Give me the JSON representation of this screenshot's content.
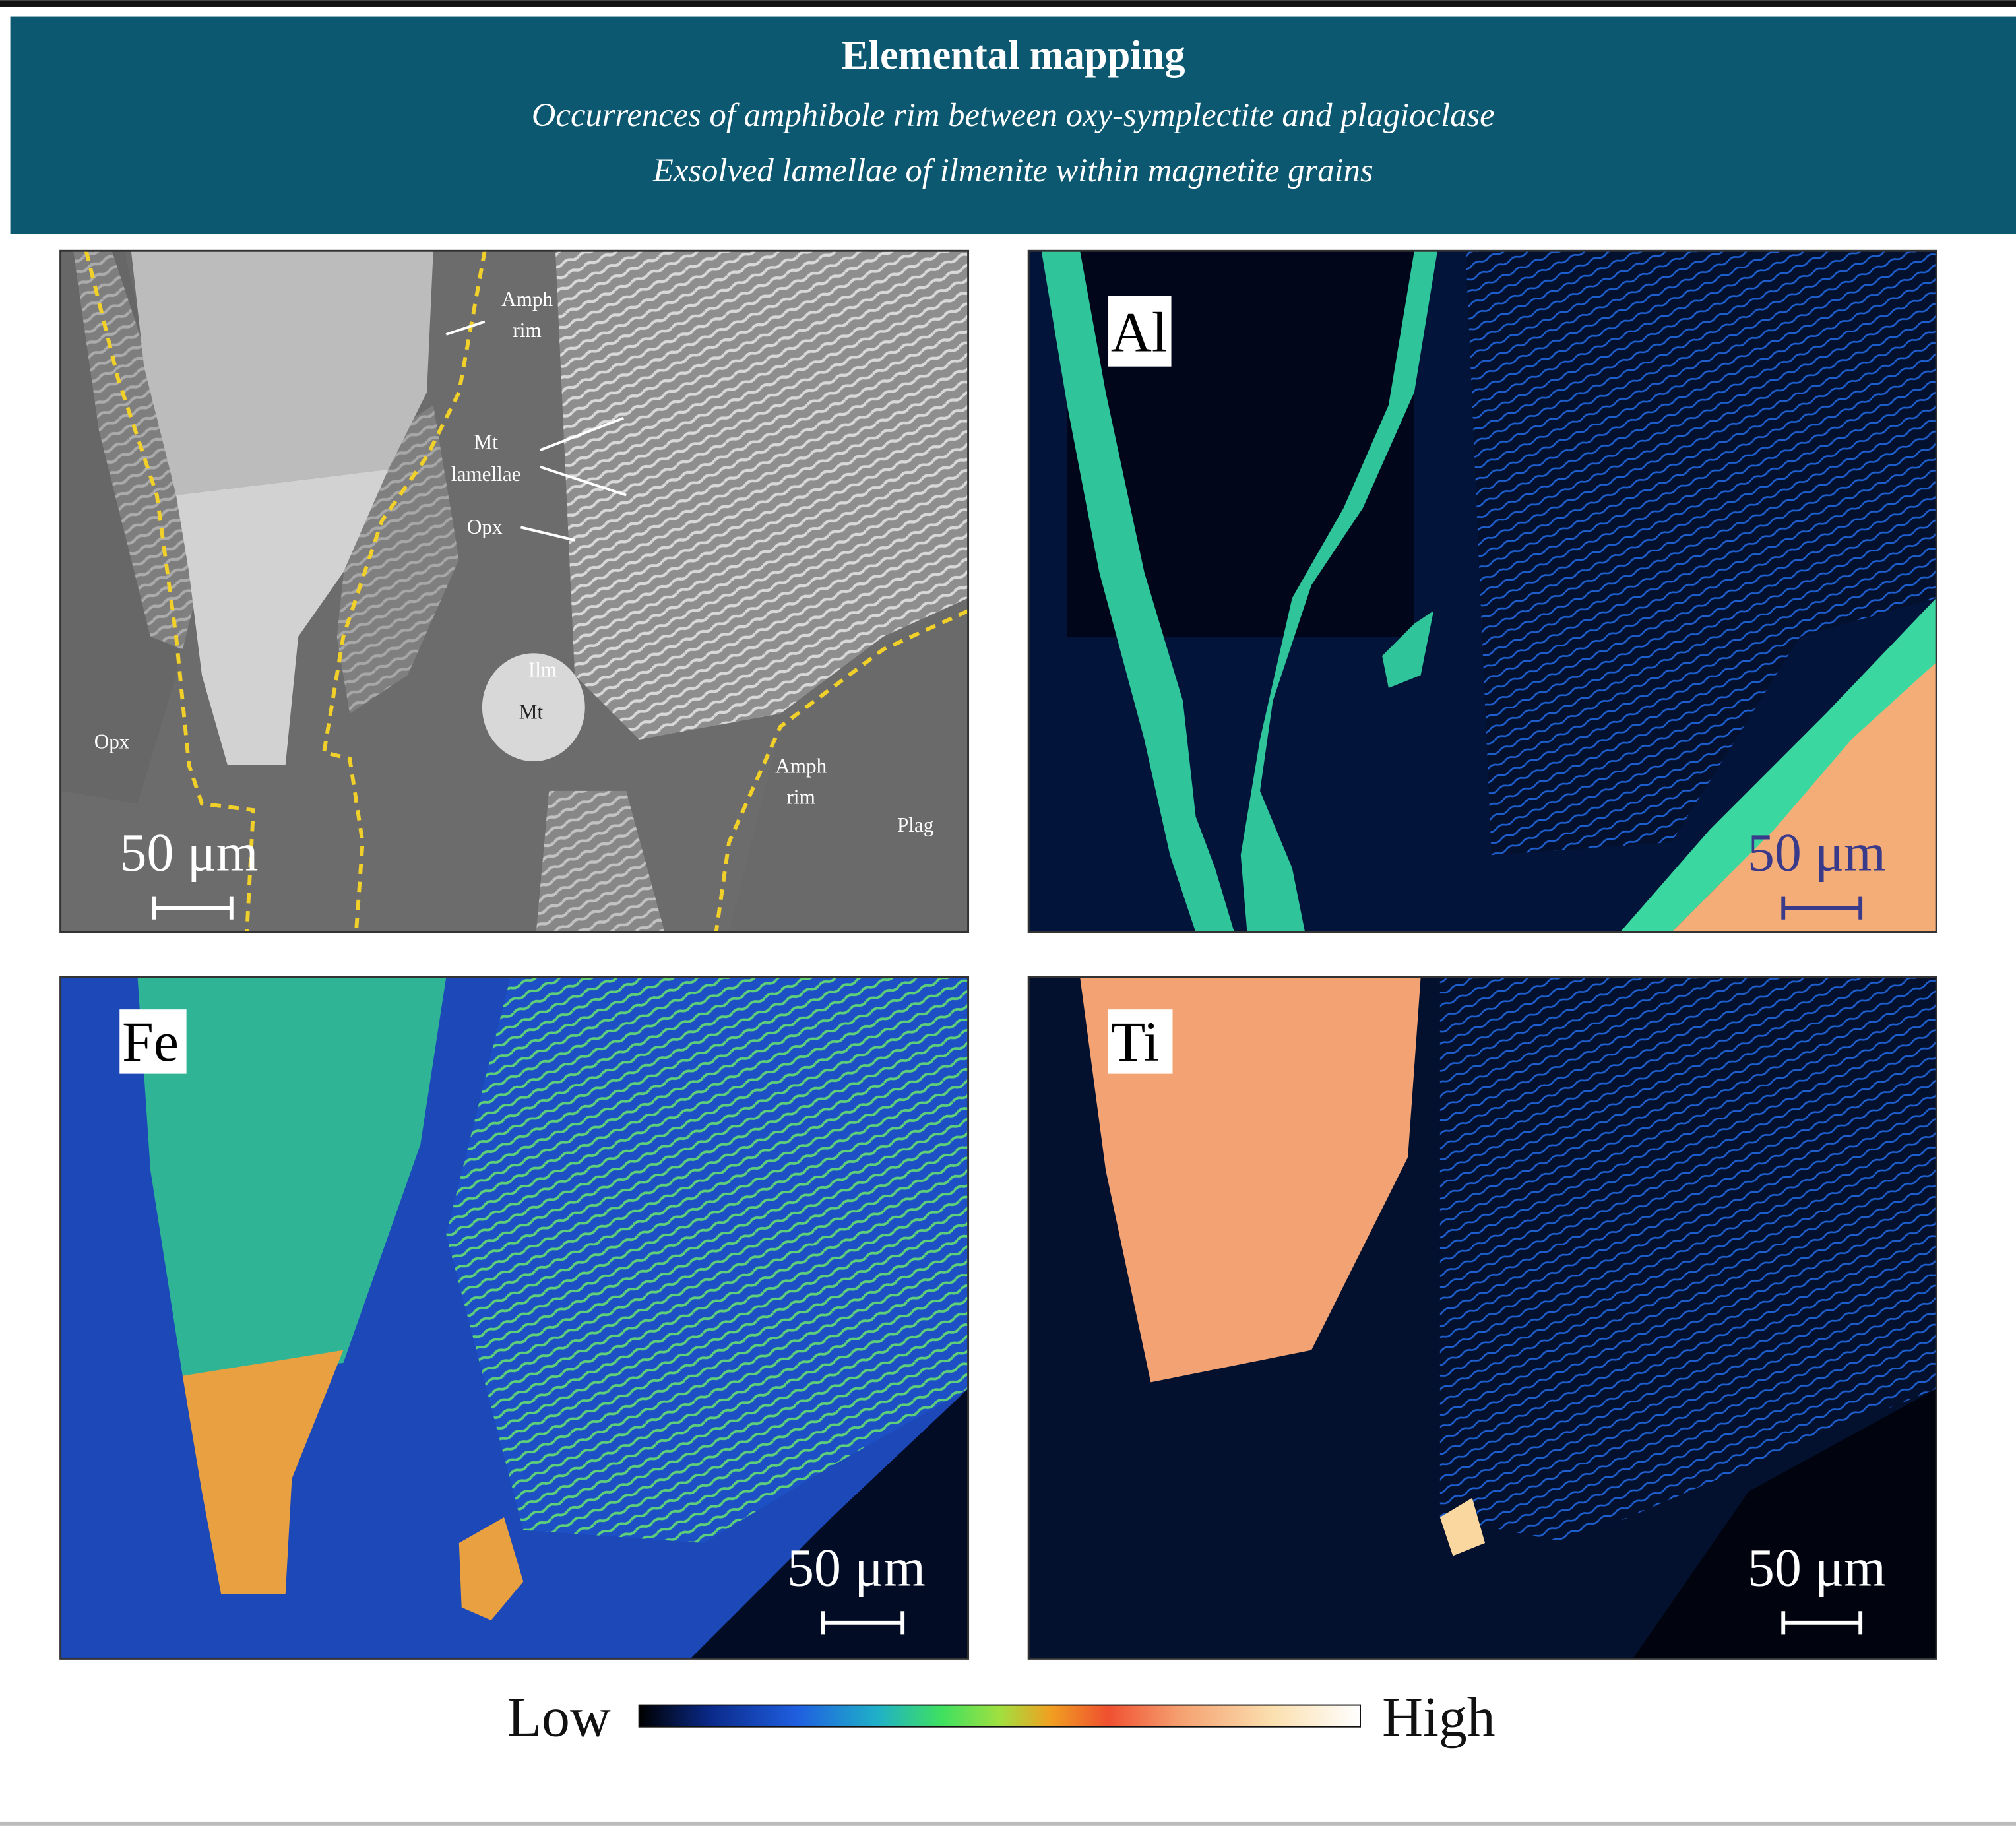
{
  "header": {
    "title": "Elemental mapping",
    "subtitle_lines": [
      "Occurrences of amphibole rim between oxy-symplectite and plagioclase",
      "Exsolved lamellae of ilmenite within magnetite grains"
    ]
  },
  "panels": [
    {
      "annotations": [
        {
          "lines": [
            "Amph",
            "rim"
          ]
        },
        {
          "lines": [
            "Mt",
            "lamellae"
          ]
        },
        {
          "lines": [
            "Opx"
          ]
        },
        {
          "lines": [
            "Ilm"
          ]
        },
        {
          "lines": [
            "Mt"
          ]
        },
        {
          "lines": [
            "Opx"
          ]
        },
        {
          "lines": [
            "Amph",
            "rim"
          ]
        },
        {
          "lines": [
            "Plag"
          ]
        }
      ],
      "scale_bar": "50 μm"
    },
    {
      "label": "Al",
      "scale_bar": "50 μm"
    },
    {
      "label": "Fe",
      "scale_bar": "50 μm"
    },
    {
      "label": "Ti",
      "scale_bar": "50 μm"
    }
  ],
  "colorbar": {
    "low": "Low",
    "high": "High"
  }
}
